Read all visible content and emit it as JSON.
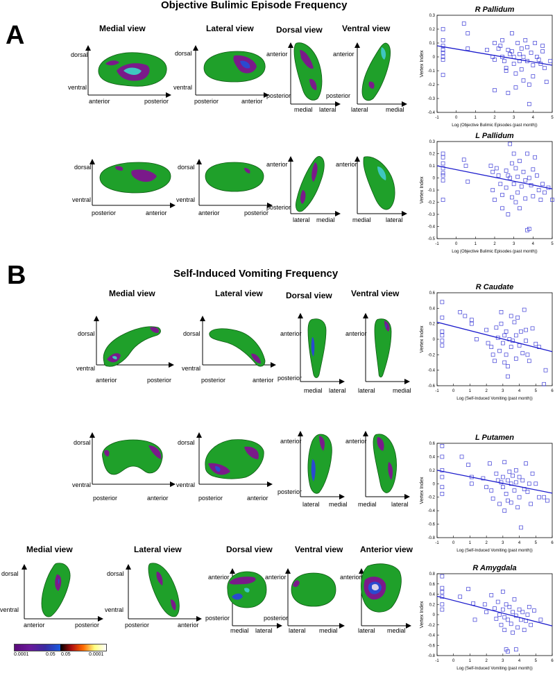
{
  "panel_a": {
    "letter": "A",
    "title": "Objective Bulimic Episode Frequency",
    "views": [
      "Medial view",
      "Lateral view",
      "Dorsal view",
      "Ventral view"
    ]
  },
  "panel_b": {
    "letter": "B",
    "title": "Self-Induced Vomiting Frequency",
    "views": [
      "Medial view",
      "Lateral view",
      "Dorsal view",
      "Ventral view"
    ],
    "views_row3": [
      "Medial view",
      "Lateral view",
      "Dorsal view",
      "Ventral view",
      "Anterior view"
    ]
  },
  "axis_words": {
    "dorsal": "dorsal",
    "ventral": "ventral",
    "anterior": "anterior",
    "posterior": "posterior",
    "medial": "medial",
    "lateral": "lateral"
  },
  "colorbar": {
    "labels": [
      "0.0001",
      "0.05",
      "0.05",
      "0.0001"
    ],
    "colors_neg": [
      "#000000",
      "#5a0a7a",
      "#3a2aa0",
      "#1a5ae0"
    ],
    "colors_pos": [
      "#000000",
      "#b01010",
      "#ff6a00",
      "#ffff80",
      "#ffffff"
    ]
  },
  "colors": {
    "surface_green": "#1fa02a",
    "surface_purple": "#7a1a8a",
    "surface_blue": "#2a4ad0",
    "surface_cyan": "#3fc6c0",
    "scatter_marker": "#3b3bd6",
    "fit_line": "#1a1acc"
  },
  "chart_data": [
    {
      "type": "scatter",
      "title": "R Pallidum",
      "xlabel": "Log (Objective Bulimic Episodes (past month))",
      "ylabel": "Vertex Index",
      "xlim": [
        -1,
        5
      ],
      "ylim": [
        -0.4,
        0.3
      ],
      "xticks": [
        -1,
        0,
        1,
        2,
        3,
        4,
        5
      ],
      "yticks": [
        -0.4,
        -0.3,
        -0.2,
        -0.1,
        0,
        0.1,
        0.2,
        0.3
      ],
      "fit": [
        [
          -1,
          0.08
        ],
        [
          5,
          -0.06
        ]
      ],
      "points": [
        [
          -0.69,
          0.2
        ],
        [
          -0.69,
          0.12
        ],
        [
          -0.69,
          0.08
        ],
        [
          -0.69,
          0.05
        ],
        [
          -0.69,
          0.03
        ],
        [
          -0.69,
          0.0
        ],
        [
          -0.69,
          -0.02
        ],
        [
          -0.69,
          -0.13
        ],
        [
          0.4,
          0.24
        ],
        [
          0.6,
          0.17
        ],
        [
          0.6,
          0.06
        ],
        [
          1.6,
          0.05
        ],
        [
          1.9,
          0.0
        ],
        [
          2.0,
          0.1
        ],
        [
          2.0,
          -0.02
        ],
        [
          2.0,
          -0.24
        ],
        [
          2.2,
          0.06
        ],
        [
          2.3,
          0.08
        ],
        [
          2.4,
          0.12
        ],
        [
          2.4,
          0.0
        ],
        [
          2.5,
          -0.03
        ],
        [
          2.6,
          -0.08
        ],
        [
          2.6,
          -0.1
        ],
        [
          2.7,
          0.05
        ],
        [
          2.7,
          -0.26
        ],
        [
          2.8,
          0.02
        ],
        [
          2.9,
          0.17
        ],
        [
          2.9,
          0.04
        ],
        [
          3.0,
          0.0
        ],
        [
          3.0,
          -0.05
        ],
        [
          3.1,
          -0.12
        ],
        [
          3.1,
          -0.22
        ],
        [
          3.2,
          0.1
        ],
        [
          3.3,
          0.02
        ],
        [
          3.3,
          -0.03
        ],
        [
          3.4,
          0.06
        ],
        [
          3.4,
          -0.09
        ],
        [
          3.5,
          0.0
        ],
        [
          3.5,
          -0.17
        ],
        [
          3.6,
          0.12
        ],
        [
          3.7,
          0.07
        ],
        [
          3.7,
          -0.03
        ],
        [
          3.8,
          -0.2
        ],
        [
          3.8,
          -0.34
        ],
        [
          3.9,
          0.03
        ],
        [
          4.0,
          -0.06
        ],
        [
          4.0,
          -0.14
        ],
        [
          4.1,
          0.1
        ],
        [
          4.2,
          0.0
        ],
        [
          4.3,
          -0.02
        ],
        [
          4.4,
          -0.05
        ],
        [
          4.5,
          0.04
        ],
        [
          4.5,
          0.08
        ],
        [
          4.6,
          -0.08
        ],
        [
          4.7,
          -0.18
        ],
        [
          4.9,
          -0.03
        ]
      ]
    },
    {
      "type": "scatter",
      "title": "L Pallidum",
      "xlabel": "Log (Objective Bulimic Episodes (past month))",
      "ylabel": "Vertex Index",
      "xlim": [
        -1,
        5
      ],
      "ylim": [
        -0.5,
        0.3
      ],
      "xticks": [
        -1,
        0,
        1,
        2,
        3,
        4,
        5
      ],
      "yticks": [
        -0.5,
        -0.4,
        -0.3,
        -0.2,
        -0.1,
        0,
        0.1,
        0.2,
        0.3
      ],
      "fit": [
        [
          -1,
          0.1
        ],
        [
          5,
          -0.09
        ]
      ],
      "points": [
        [
          -0.69,
          0.2
        ],
        [
          -0.69,
          0.17
        ],
        [
          -0.69,
          0.12
        ],
        [
          -0.69,
          0.08
        ],
        [
          -0.69,
          0.04
        ],
        [
          -0.69,
          0.02
        ],
        [
          -0.69,
          -0.02
        ],
        [
          -0.69,
          -0.18
        ],
        [
          0.4,
          0.15
        ],
        [
          0.5,
          0.1
        ],
        [
          0.6,
          -0.03
        ],
        [
          1.8,
          0.1
        ],
        [
          1.9,
          0.05
        ],
        [
          1.9,
          -0.1
        ],
        [
          2.0,
          -0.18
        ],
        [
          2.1,
          0.08
        ],
        [
          2.2,
          0.02
        ],
        [
          2.3,
          -0.05
        ],
        [
          2.4,
          -0.14
        ],
        [
          2.4,
          -0.25
        ],
        [
          2.6,
          0.06
        ],
        [
          2.6,
          -0.08
        ],
        [
          2.7,
          0.02
        ],
        [
          2.7,
          -0.3
        ],
        [
          2.8,
          0.28
        ],
        [
          2.8,
          0.0
        ],
        [
          2.9,
          0.12
        ],
        [
          2.9,
          -0.16
        ],
        [
          3.0,
          0.2
        ],
        [
          3.0,
          -0.05
        ],
        [
          3.1,
          0.08
        ],
        [
          3.1,
          -0.2
        ],
        [
          3.2,
          0.01
        ],
        [
          3.2,
          -0.12
        ],
        [
          3.3,
          0.14
        ],
        [
          3.3,
          -0.25
        ],
        [
          3.4,
          -0.07
        ],
        [
          3.5,
          0.05
        ],
        [
          3.6,
          -0.02
        ],
        [
          3.6,
          -0.17
        ],
        [
          3.7,
          0.2
        ],
        [
          3.7,
          -0.43
        ],
        [
          3.8,
          -0.42
        ],
        [
          3.8,
          0.0
        ],
        [
          3.9,
          -0.06
        ],
        [
          4.0,
          0.07
        ],
        [
          4.0,
          -0.15
        ],
        [
          4.1,
          0.17
        ],
        [
          4.2,
          0.02
        ],
        [
          4.3,
          -0.1
        ],
        [
          4.4,
          -0.18
        ],
        [
          4.5,
          -0.05
        ],
        [
          4.6,
          -0.12
        ],
        [
          4.8,
          -0.08
        ],
        [
          5.0,
          -0.18
        ]
      ]
    },
    {
      "type": "scatter",
      "title": "R Caudate",
      "xlabel": "Log (Self-Induced Vomiting (past month))",
      "ylabel": "Vertex Index",
      "xlim": [
        -1,
        6
      ],
      "ylim": [
        -0.6,
        0.6
      ],
      "xticks": [
        -1,
        0,
        1,
        2,
        3,
        4,
        5,
        6
      ],
      "yticks": [
        -0.6,
        -0.4,
        -0.2,
        0,
        0.2,
        0.4,
        0.6
      ],
      "fit": [
        [
          -1,
          0.22
        ],
        [
          6,
          -0.16
        ]
      ],
      "points": [
        [
          -0.69,
          0.48
        ],
        [
          -0.69,
          0.28
        ],
        [
          -0.69,
          0.1
        ],
        [
          -0.69,
          0.05
        ],
        [
          -0.69,
          -0.02
        ],
        [
          -0.69,
          -0.08
        ],
        [
          0.4,
          0.35
        ],
        [
          0.7,
          0.3
        ],
        [
          1.1,
          0.25
        ],
        [
          1.1,
          0.2
        ],
        [
          1.4,
          0.0
        ],
        [
          2.0,
          0.12
        ],
        [
          2.1,
          -0.05
        ],
        [
          2.3,
          -0.1
        ],
        [
          2.4,
          -0.2
        ],
        [
          2.5,
          -0.28
        ],
        [
          2.6,
          0.15
        ],
        [
          2.7,
          0.02
        ],
        [
          2.8,
          -0.15
        ],
        [
          2.9,
          0.35
        ],
        [
          2.9,
          0.2
        ],
        [
          3.0,
          -0.05
        ],
        [
          3.1,
          0.05
        ],
        [
          3.1,
          -0.3
        ],
        [
          3.2,
          0.1
        ],
        [
          3.2,
          -0.2
        ],
        [
          3.3,
          -0.48
        ],
        [
          3.3,
          -0.35
        ],
        [
          3.4,
          0.0
        ],
        [
          3.5,
          -0.1
        ],
        [
          3.5,
          0.3
        ],
        [
          3.6,
          -0.02
        ],
        [
          3.7,
          0.22
        ],
        [
          3.8,
          0.05
        ],
        [
          3.8,
          -0.25
        ],
        [
          3.9,
          0.28
        ],
        [
          4.0,
          -0.08
        ],
        [
          4.1,
          0.1
        ],
        [
          4.2,
          -0.18
        ],
        [
          4.3,
          0.38
        ],
        [
          4.4,
          0.12
        ],
        [
          4.4,
          -0.02
        ],
        [
          4.5,
          -0.2
        ],
        [
          4.6,
          -0.28
        ],
        [
          4.8,
          0.14
        ],
        [
          5.0,
          -0.06
        ],
        [
          5.2,
          -0.1
        ],
        [
          5.6,
          -0.4
        ],
        [
          5.5,
          -0.58
        ]
      ]
    },
    {
      "type": "scatter",
      "title": "L Putamen",
      "xlabel": "Log (Self-Induced Vomiting (past month))",
      "ylabel": "Vertex Index",
      "xlim": [
        -1,
        6
      ],
      "ylim": [
        -0.8,
        0.6
      ],
      "xticks": [
        -1,
        0,
        1,
        2,
        3,
        4,
        5,
        6
      ],
      "yticks": [
        -0.8,
        -0.6,
        -0.4,
        -0.2,
        0,
        0.2,
        0.4,
        0.6
      ],
      "fit": [
        [
          -1,
          0.2
        ],
        [
          6,
          -0.14
        ]
      ],
      "points": [
        [
          -0.69,
          0.56
        ],
        [
          -0.69,
          0.4
        ],
        [
          -0.69,
          0.2
        ],
        [
          -0.69,
          0.1
        ],
        [
          -0.69,
          -0.05
        ],
        [
          -0.69,
          -0.15
        ],
        [
          0.5,
          0.4
        ],
        [
          0.9,
          0.28
        ],
        [
          1.1,
          0.1
        ],
        [
          1.1,
          0.0
        ],
        [
          1.8,
          0.08
        ],
        [
          2.0,
          -0.05
        ],
        [
          2.2,
          0.3
        ],
        [
          2.3,
          -0.1
        ],
        [
          2.4,
          -0.22
        ],
        [
          2.6,
          0.15
        ],
        [
          2.7,
          0.05
        ],
        [
          2.8,
          -0.3
        ],
        [
          2.9,
          0.02
        ],
        [
          3.0,
          0.1
        ],
        [
          3.0,
          -0.05
        ],
        [
          3.1,
          -0.4
        ],
        [
          3.1,
          0.32
        ],
        [
          3.2,
          -0.15
        ],
        [
          3.3,
          -0.25
        ],
        [
          3.3,
          0.05
        ],
        [
          3.4,
          0.18
        ],
        [
          3.5,
          -0.28
        ],
        [
          3.5,
          0.0
        ],
        [
          3.6,
          0.12
        ],
        [
          3.7,
          -0.1
        ],
        [
          3.8,
          0.02
        ],
        [
          3.8,
          0.2
        ],
        [
          3.9,
          -0.35
        ],
        [
          4.0,
          -0.2
        ],
        [
          4.0,
          0.1
        ],
        [
          4.1,
          -0.65
        ],
        [
          4.2,
          0.05
        ],
        [
          4.3,
          -0.08
        ],
        [
          4.4,
          0.3
        ],
        [
          4.5,
          -0.12
        ],
        [
          4.6,
          0.0
        ],
        [
          4.7,
          -0.3
        ],
        [
          4.8,
          0.15
        ],
        [
          5.0,
          0.0
        ],
        [
          5.2,
          -0.2
        ],
        [
          5.5,
          -0.2
        ],
        [
          5.7,
          -0.25
        ]
      ]
    },
    {
      "type": "scatter",
      "title": "R Amygdala",
      "xlabel": "Log (Self-Induced Vomiting (past month))",
      "ylabel": "Vertex Index",
      "xlim": [
        -1,
        6
      ],
      "ylim": [
        -0.8,
        0.8
      ],
      "xticks": [
        -1,
        0,
        1,
        2,
        3,
        4,
        5,
        6
      ],
      "yticks": [
        -0.8,
        -0.6,
        -0.4,
        -0.2,
        0,
        0.2,
        0.4,
        0.6,
        0.8
      ],
      "fit": [
        [
          -1,
          0.36
        ],
        [
          6,
          -0.22
        ]
      ],
      "points": [
        [
          -0.69,
          0.75
        ],
        [
          -0.69,
          0.52
        ],
        [
          -0.69,
          0.44
        ],
        [
          -0.69,
          0.35
        ],
        [
          -0.69,
          0.2
        ],
        [
          -0.69,
          0.1
        ],
        [
          0.4,
          0.35
        ],
        [
          0.9,
          0.5
        ],
        [
          1.2,
          0.22
        ],
        [
          1.3,
          -0.1
        ],
        [
          1.9,
          0.2
        ],
        [
          2.0,
          0.05
        ],
        [
          2.3,
          0.38
        ],
        [
          2.5,
          0.12
        ],
        [
          2.6,
          -0.08
        ],
        [
          2.7,
          0.25
        ],
        [
          2.8,
          0.0
        ],
        [
          2.9,
          -0.2
        ],
        [
          3.0,
          0.45
        ],
        [
          3.0,
          0.1
        ],
        [
          3.1,
          -0.05
        ],
        [
          3.1,
          -0.3
        ],
        [
          3.2,
          0.2
        ],
        [
          3.2,
          -0.68
        ],
        [
          3.3,
          -0.1
        ],
        [
          3.3,
          -0.72
        ],
        [
          3.4,
          0.15
        ],
        [
          3.5,
          -0.18
        ],
        [
          3.6,
          0.05
        ],
        [
          3.6,
          -0.35
        ],
        [
          3.7,
          0.3
        ],
        [
          3.8,
          -0.02
        ],
        [
          3.8,
          -0.68
        ],
        [
          3.9,
          -0.25
        ],
        [
          4.0,
          0.1
        ],
        [
          4.1,
          -0.1
        ],
        [
          4.2,
          0.05
        ],
        [
          4.3,
          -0.3
        ],
        [
          4.4,
          -0.12
        ],
        [
          4.5,
          0.0
        ],
        [
          4.6,
          0.15
        ],
        [
          4.7,
          -0.2
        ],
        [
          4.9,
          0.08
        ],
        [
          5.3,
          -0.1
        ]
      ]
    }
  ]
}
